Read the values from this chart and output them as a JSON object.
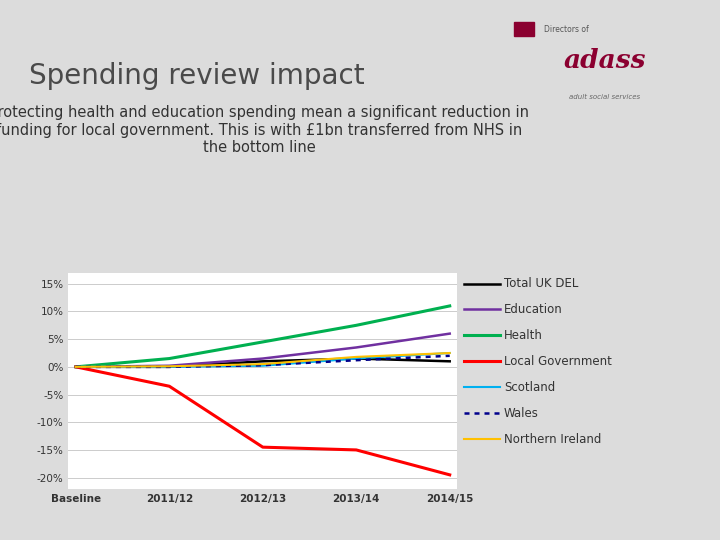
{
  "title": "Spending review impact",
  "subtitle": "Protecting health and education spending mean a significant reduction in\nfunding for local government. This is with £1bn transferred from NHS in\nthe bottom line",
  "background_color": "#dcdcdc",
  "plot_bg_color": "#ffffff",
  "x_labels": [
    "Baseline",
    "2011/12",
    "2012/13",
    "2013/14",
    "2014/15"
  ],
  "series": [
    {
      "name": "Total UK DEL",
      "color": "#000000",
      "linestyle": "solid",
      "linewidth": 1.8,
      "values": [
        0,
        0,
        1.0,
        1.5,
        1.0
      ]
    },
    {
      "name": "Education",
      "color": "#7030a0",
      "linestyle": "solid",
      "linewidth": 1.8,
      "values": [
        0,
        0.2,
        1.5,
        3.5,
        6.0
      ]
    },
    {
      "name": "Health",
      "color": "#00b050",
      "linestyle": "solid",
      "linewidth": 2.2,
      "values": [
        0,
        1.5,
        4.5,
        7.5,
        11.0
      ]
    },
    {
      "name": "Local Government",
      "color": "#ff0000",
      "linestyle": "solid",
      "linewidth": 2.2,
      "values": [
        0,
        -3.5,
        -14.5,
        -15.0,
        -19.5
      ]
    },
    {
      "name": "Scotland",
      "color": "#00b0f0",
      "linestyle": "solid",
      "linewidth": 1.5,
      "values": [
        0,
        0.0,
        0.2,
        1.5,
        2.5
      ]
    },
    {
      "name": "Wales",
      "color": "#00008b",
      "linestyle": "dotted",
      "linewidth": 1.8,
      "values": [
        0,
        0.0,
        0.3,
        1.2,
        2.0
      ]
    },
    {
      "name": "Northern Ireland",
      "color": "#ffc000",
      "linestyle": "solid",
      "linewidth": 1.5,
      "values": [
        0,
        0.1,
        0.5,
        1.8,
        2.5
      ]
    }
  ],
  "ylim": [
    -22,
    17
  ],
  "yticks": [
    -20,
    -15,
    -10,
    -5,
    0,
    5,
    10,
    15
  ],
  "ytick_labels": [
    "-20%",
    "-15%",
    "-10%",
    "-5%",
    "0%",
    "5%",
    "10%",
    "15%"
  ],
  "title_fontsize": 20,
  "subtitle_fontsize": 10.5,
  "tick_fontsize": 7.5,
  "legend_fontsize": 8.5,
  "logo_color": "#8b0030"
}
